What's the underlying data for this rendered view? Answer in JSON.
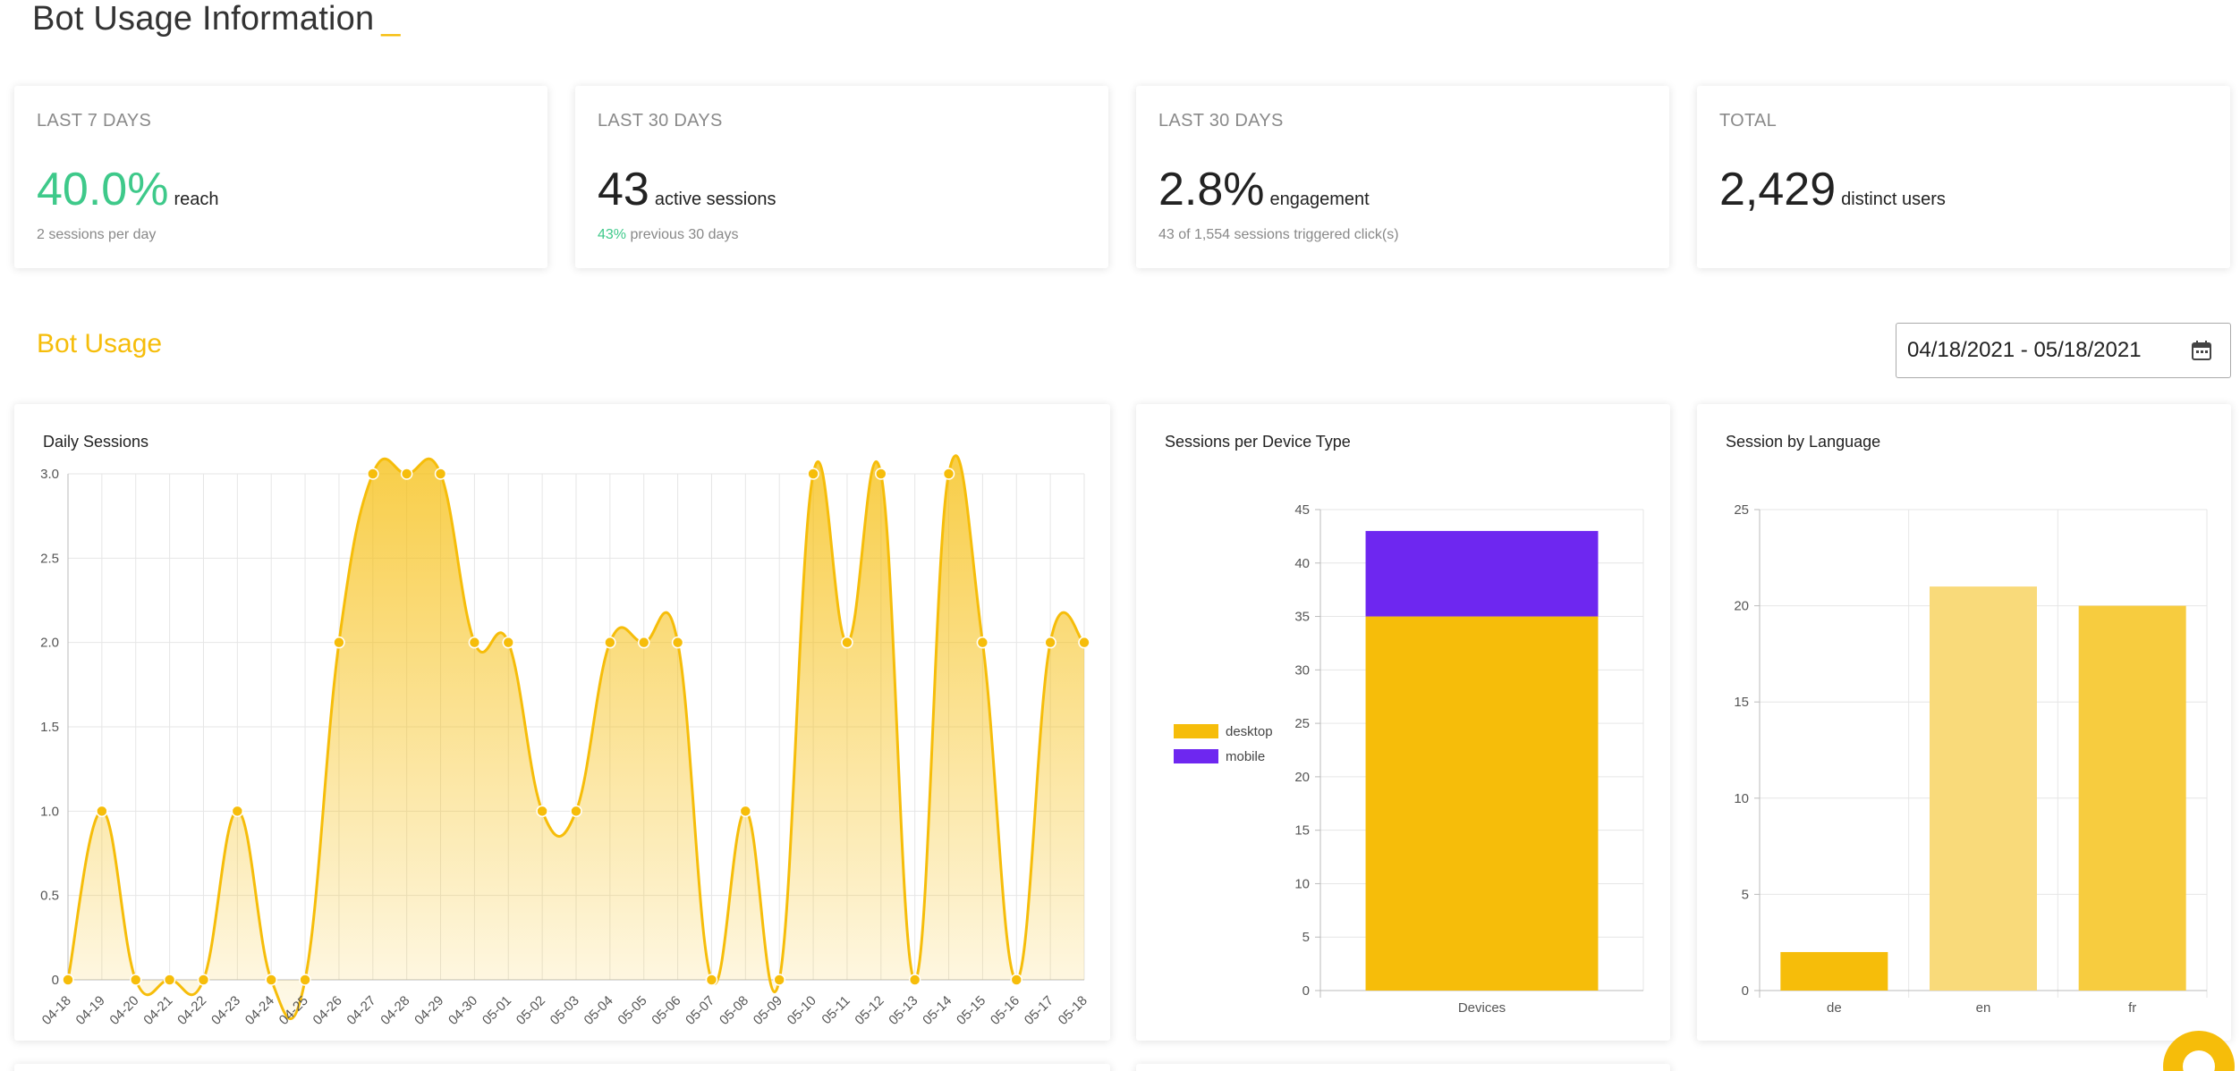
{
  "page": {
    "title": "Bot Usage Information",
    "title_suffix": "_"
  },
  "stats": [
    {
      "period": "LAST 7 DAYS",
      "value": "40.0%",
      "unit": "reach",
      "sub_highlight": "",
      "sub_text": "2 sessions per day"
    },
    {
      "period": "LAST 30 DAYS",
      "value": "43",
      "unit": "active sessions",
      "sub_highlight": "43%",
      "sub_text": " previous 30 days"
    },
    {
      "period": "LAST 30 DAYS",
      "value": "2.8%",
      "unit": "engagement",
      "sub_highlight": "",
      "sub_text": "43 of 1,554 sessions triggered click(s)"
    },
    {
      "period": "TOTAL",
      "value": "2,429",
      "unit": "distinct users",
      "sub_highlight": "",
      "sub_text": ""
    }
  ],
  "section": {
    "title": "Bot Usage"
  },
  "date_range": {
    "value": "04/18/2021 - 05/18/2021",
    "icon": "calendar-icon"
  },
  "colors": {
    "accent": "#f6bd0a",
    "green": "#3ec98a",
    "purple": "#6e27f0",
    "bar_light": "#f9da7a",
    "bar_mid": "#f7cc3f"
  },
  "chart_data": [
    {
      "type": "area",
      "title": "Daily Sessions",
      "x": [
        "04-18",
        "04-19",
        "04-20",
        "04-21",
        "04-22",
        "04-23",
        "04-24",
        "04-25",
        "04-26",
        "04-27",
        "04-28",
        "04-29",
        "04-30",
        "05-01",
        "05-02",
        "05-03",
        "05-04",
        "05-05",
        "05-06",
        "05-07",
        "05-08",
        "05-09",
        "05-10",
        "05-11",
        "05-12",
        "05-13",
        "05-14",
        "05-15",
        "05-16",
        "05-17",
        "05-18"
      ],
      "values": [
        0,
        1,
        0,
        0,
        0,
        1,
        0,
        0,
        2,
        3,
        3,
        3,
        2,
        2,
        1,
        1,
        2,
        2,
        2,
        0,
        1,
        0,
        3,
        2,
        3,
        0,
        3,
        2,
        0,
        2,
        2
      ],
      "ylim": [
        0,
        3.0
      ],
      "yticks": [
        "0",
        "0.5",
        "1.0",
        "1.5",
        "2.0",
        "2.5",
        "3.0"
      ],
      "grid": true
    },
    {
      "type": "bar",
      "title": "Sessions per Device Type",
      "categories": [
        "Devices"
      ],
      "series": [
        {
          "name": "desktop",
          "values": [
            35
          ]
        },
        {
          "name": "mobile",
          "values": [
            8
          ]
        }
      ],
      "stacked": true,
      "ylim": [
        0,
        45
      ],
      "yticks": [
        "0",
        "5",
        "10",
        "15",
        "20",
        "25",
        "30",
        "35",
        "40",
        "45"
      ],
      "legend": "left"
    },
    {
      "type": "bar",
      "title": "Session by Language",
      "categories": [
        "de",
        "en",
        "fr"
      ],
      "values": [
        2,
        21,
        20
      ],
      "ylim": [
        0,
        25
      ],
      "yticks": [
        "0",
        "5",
        "10",
        "15",
        "20",
        "25"
      ]
    }
  ]
}
